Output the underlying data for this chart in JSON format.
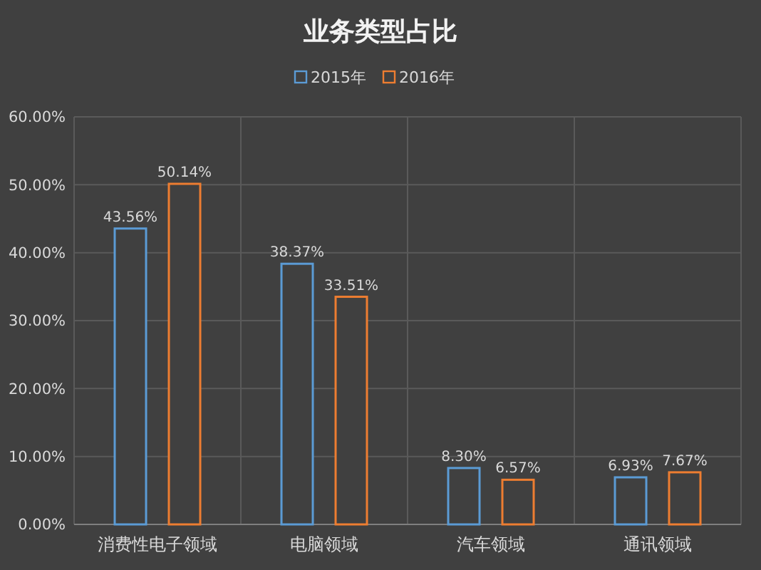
{
  "chart_data": {
    "type": "bar",
    "title": "业务类型占比",
    "categories": [
      "消费性电子领域",
      "电脑领域",
      "汽车领域",
      "通讯领域"
    ],
    "series": [
      {
        "name": "2015年",
        "color": "#5b9bd5",
        "values": [
          43.56,
          38.37,
          8.3,
          6.93
        ],
        "value_labels": [
          "43.56%",
          "38.37%",
          "8.30%",
          "6.93%"
        ]
      },
      {
        "name": "2016年",
        "color": "#ed7d31",
        "values": [
          50.14,
          33.51,
          6.57,
          7.67
        ],
        "value_labels": [
          "50.14%",
          "33.51%",
          "6.57%",
          "7.67%"
        ]
      }
    ],
    "ylim": [
      0,
      60
    ],
    "yticks": [
      {
        "value": 0,
        "label": "0.00%"
      },
      {
        "value": 10,
        "label": "10.00%"
      },
      {
        "value": 20,
        "label": "20.00%"
      },
      {
        "value": 30,
        "label": "30.00%"
      },
      {
        "value": 40,
        "label": "40.00%"
      },
      {
        "value": 50,
        "label": "50.00%"
      },
      {
        "value": 60,
        "label": "60.00%"
      }
    ],
    "grid": true,
    "legend": "top"
  }
}
